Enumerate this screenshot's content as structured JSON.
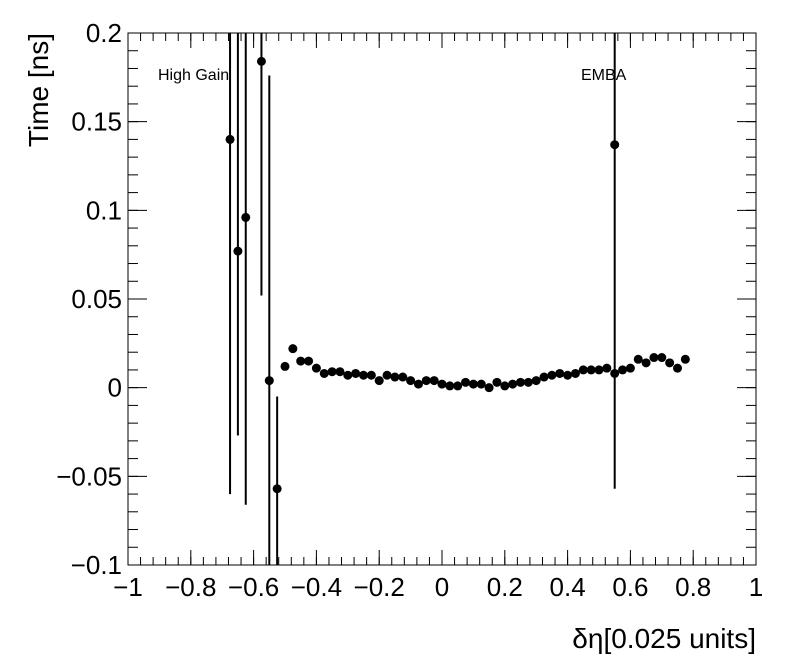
{
  "chart_data": {
    "type": "scatter",
    "title": "",
    "xlabel": "δη[0.025 units]",
    "ylabel": "Time [ns]",
    "xlim": [
      -1,
      1
    ],
    "ylim": [
      -0.1,
      0.2
    ],
    "xticks": [
      "−1",
      "−0.8",
      "−0.6",
      "−0.4",
      "−0.2",
      "0",
      "0.2",
      "0.4",
      "0.6",
      "0.8",
      "1"
    ],
    "yticks": [
      "−0.1",
      "−0.05",
      "0",
      "0.05",
      "0.1",
      "0.15",
      "0.2"
    ],
    "annotations": {
      "left": "High Gain",
      "right": "EMBA"
    },
    "grid": false,
    "marker_color": "#000000",
    "points": [
      {
        "x": -0.675,
        "y": 0.14,
        "elo": 0.2,
        "ehi": 0.2
      },
      {
        "x": -0.65,
        "y": 0.077,
        "elo": 0.104,
        "ehi": 0.2
      },
      {
        "x": -0.625,
        "y": 0.096,
        "elo": 0.162,
        "ehi": 0.2
      },
      {
        "x": -0.575,
        "y": 0.184,
        "elo": 0.132,
        "ehi": 0.2
      },
      {
        "x": -0.55,
        "y": 0.004,
        "elo": 0.2,
        "ehi": 0.172
      },
      {
        "x": -0.525,
        "y": -0.057,
        "elo": 0.2,
        "ehi": 0.052
      },
      {
        "x": -0.5,
        "y": 0.012
      },
      {
        "x": -0.475,
        "y": 0.022
      },
      {
        "x": -0.45,
        "y": 0.015
      },
      {
        "x": -0.425,
        "y": 0.015
      },
      {
        "x": -0.4,
        "y": 0.011
      },
      {
        "x": -0.375,
        "y": 0.008
      },
      {
        "x": -0.35,
        "y": 0.009
      },
      {
        "x": -0.325,
        "y": 0.009
      },
      {
        "x": -0.3,
        "y": 0.007
      },
      {
        "x": -0.275,
        "y": 0.008
      },
      {
        "x": -0.25,
        "y": 0.007
      },
      {
        "x": -0.225,
        "y": 0.007
      },
      {
        "x": -0.2,
        "y": 0.004
      },
      {
        "x": -0.175,
        "y": 0.007
      },
      {
        "x": -0.15,
        "y": 0.006
      },
      {
        "x": -0.125,
        "y": 0.006
      },
      {
        "x": -0.1,
        "y": 0.004
      },
      {
        "x": -0.075,
        "y": 0.002
      },
      {
        "x": -0.05,
        "y": 0.004
      },
      {
        "x": -0.025,
        "y": 0.004
      },
      {
        "x": 0.0,
        "y": 0.002
      },
      {
        "x": 0.025,
        "y": 0.001
      },
      {
        "x": 0.05,
        "y": 0.001
      },
      {
        "x": 0.075,
        "y": 0.003
      },
      {
        "x": 0.1,
        "y": 0.002
      },
      {
        "x": 0.125,
        "y": 0.002
      },
      {
        "x": 0.15,
        "y": 0.0
      },
      {
        "x": 0.175,
        "y": 0.003
      },
      {
        "x": 0.2,
        "y": 0.001
      },
      {
        "x": 0.225,
        "y": 0.002
      },
      {
        "x": 0.25,
        "y": 0.003
      },
      {
        "x": 0.275,
        "y": 0.003
      },
      {
        "x": 0.3,
        "y": 0.004
      },
      {
        "x": 0.325,
        "y": 0.006
      },
      {
        "x": 0.35,
        "y": 0.007
      },
      {
        "x": 0.375,
        "y": 0.008
      },
      {
        "x": 0.4,
        "y": 0.007
      },
      {
        "x": 0.425,
        "y": 0.008
      },
      {
        "x": 0.45,
        "y": 0.01
      },
      {
        "x": 0.475,
        "y": 0.01
      },
      {
        "x": 0.5,
        "y": 0.01
      },
      {
        "x": 0.525,
        "y": 0.011
      },
      {
        "x": 0.55,
        "y": 0.008
      },
      {
        "x": 0.575,
        "y": 0.01
      },
      {
        "x": 0.6,
        "y": 0.011
      },
      {
        "x": 0.625,
        "y": 0.016
      },
      {
        "x": 0.65,
        "y": 0.014
      },
      {
        "x": 0.675,
        "y": 0.017
      },
      {
        "x": 0.7,
        "y": 0.017
      },
      {
        "x": 0.725,
        "y": 0.014
      },
      {
        "x": 0.75,
        "y": 0.011
      },
      {
        "x": 0.775,
        "y": 0.016
      },
      {
        "x": 0.55,
        "y": 0.137,
        "elo": 0.194,
        "ehi": 0.2
      }
    ]
  }
}
